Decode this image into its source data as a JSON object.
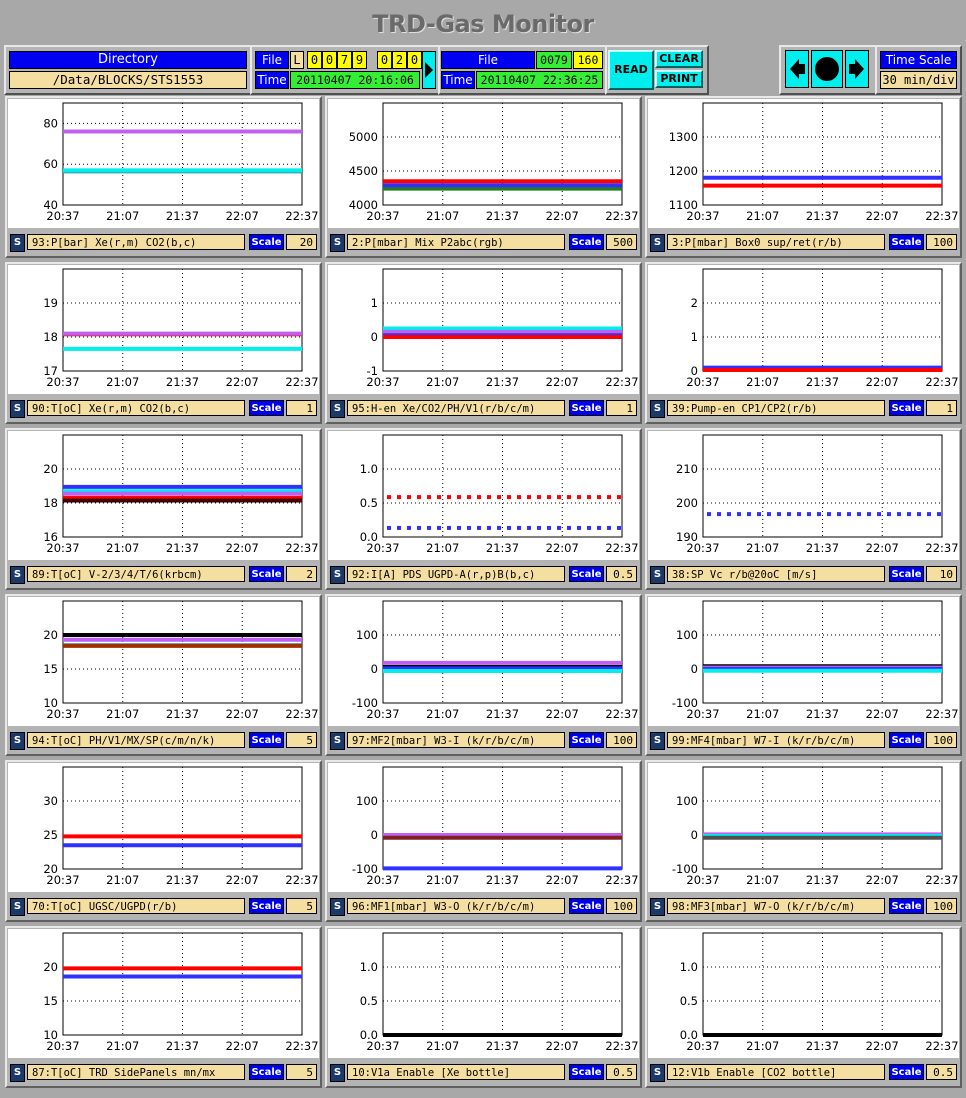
{
  "title": "TRD-Gas Monitor",
  "directory": {
    "label": "Directory",
    "path": "/Data/BLOCKS/STS1553"
  },
  "file_left": {
    "file_label": "File",
    "time_label": "Time",
    "l_label": "L",
    "digits": [
      "0",
      "0",
      "7",
      "9",
      "0",
      "2",
      "0"
    ],
    "time": "20110407  20:16:06"
  },
  "file_right": {
    "file_label": "File",
    "time_label": "Time",
    "num1": "0079",
    "num2": "160",
    "time": "20110407  22:36:25"
  },
  "buttons": {
    "read": "READ",
    "clear": "CLEAR",
    "print": "PRINT"
  },
  "timescale": {
    "label": "Time Scale",
    "value": "30 min/div"
  },
  "panel_common": {
    "s_icon": "S",
    "scale_label": "Scale",
    "xticks": [
      "20:37",
      "21:07",
      "21:37",
      "22:07",
      "22:37"
    ]
  },
  "panels": [
    {
      "label": "93:P[bar] Xe(r,m) CO2(b,c)",
      "scale": "20",
      "yticks": [
        "40",
        "60",
        "80"
      ],
      "ymin": 40,
      "ymax": 90,
      "series": [
        {
          "color": "#c060f0",
          "y": 76
        },
        {
          "color": "#20a0a0",
          "y": 56.5
        },
        {
          "color": "#00eeee",
          "y": 57
        }
      ]
    },
    {
      "label": "2:P[mbar] Mix P2abc(rgb)",
      "scale": "500",
      "yticks": [
        "4000",
        "4500",
        "5000"
      ],
      "ymin": 4000,
      "ymax": 5500,
      "series": [
        {
          "color": "#208020",
          "y": 4240
        },
        {
          "color": "#3030ff",
          "y": 4290
        },
        {
          "color": "#ff0000",
          "y": 4350
        }
      ]
    },
    {
      "label": "3:P[mbar] Box0 sup/ret(r/b)",
      "scale": "100",
      "yticks": [
        "1100",
        "1200",
        "1300"
      ],
      "ymin": 1100,
      "ymax": 1400,
      "series": [
        {
          "color": "#3030ff",
          "y": 1180
        },
        {
          "color": "#ff0000",
          "y": 1157
        }
      ]
    },
    {
      "label": "90:T[oC] Xe(r,m) CO2(b,c)",
      "scale": "1",
      "yticks": [
        "17",
        "18",
        "19"
      ],
      "ymin": 17,
      "ymax": 20,
      "series": [
        {
          "color": "#ff0000",
          "y": 18.08
        },
        {
          "color": "#c060f0",
          "y": 18.1
        },
        {
          "color": "#00eeee",
          "y": 17.65
        }
      ]
    },
    {
      "label": "95:H-en Xe/CO2/PH/V1(r/b/c/m)",
      "scale": "1",
      "yticks": [
        "-1",
        "0",
        "1"
      ],
      "ymin": -1,
      "ymax": 2,
      "series": [
        {
          "color": "#00eeee",
          "y": 0.25
        },
        {
          "color": "#c060f0",
          "y": 0.15
        },
        {
          "color": "#3030ff",
          "y": 0.05
        },
        {
          "color": "#ff0000",
          "y": 0.0
        }
      ]
    },
    {
      "label": "39:Pump-en CP1/CP2(r/b)",
      "scale": "1",
      "yticks": [
        "0",
        "1",
        "2"
      ],
      "ymin": 0,
      "ymax": 3,
      "series": [
        {
          "color": "#3030ff",
          "y": 0.1
        },
        {
          "color": "#ff0000",
          "y": 0.03
        }
      ]
    },
    {
      "label": "89:T[oC]  V-2/3/4/T/6(krbcm)",
      "scale": "2",
      "yticks": [
        "16",
        "18",
        "20"
      ],
      "ymin": 16,
      "ymax": 22,
      "series": [
        {
          "color": "#3030ff",
          "y": 18.95
        },
        {
          "color": "#00eeee",
          "y": 18.7
        },
        {
          "color": "#c060f0",
          "y": 18.55
        },
        {
          "color": "#ff0000",
          "y": 18.3
        },
        {
          "color": "#400000",
          "y": 18.15
        }
      ]
    },
    {
      "label": "92:I[A] PDS UGPD-A(r,p)B(b,c)",
      "scale": "0.5",
      "yticks": [
        "0.0",
        "0.5",
        "1.0"
      ],
      "ymin": 0,
      "ymax": 1.5,
      "series": [
        {
          "color": "#ff0000",
          "y": 0.6,
          "dots": true
        },
        {
          "color": "#3030ff",
          "y": 0.12,
          "dots": true
        }
      ]
    },
    {
      "label": "38:SP Vc r/b@20oC [m/s]",
      "scale": "10",
      "yticks": [
        "190",
        "200",
        "210"
      ],
      "ymin": 190,
      "ymax": 220,
      "series": [
        {
          "color": "#3030ff",
          "y": 197,
          "dots": true
        }
      ]
    },
    {
      "label": "94:T[oC] PH/V1/MX/SP(c/m/n/k)",
      "scale": "5",
      "yticks": [
        "10",
        "15",
        "20"
      ],
      "ymin": 10,
      "ymax": 25,
      "series": [
        {
          "color": "#000000",
          "y": 20
        },
        {
          "color": "#c060f0",
          "y": 19.3
        },
        {
          "color": "#20a0a0",
          "y": 18.5
        },
        {
          "color": "#a03000",
          "y": 18.4
        }
      ]
    },
    {
      "label": "97:MF2[mbar] W3-I  (k/r/b/c/m)",
      "scale": "100",
      "yticks": [
        "-100",
        "0",
        "100"
      ],
      "ymin": -100,
      "ymax": 200,
      "series": [
        {
          "color": "#c060f0",
          "y": 18
        },
        {
          "color": "#000000",
          "y": 6
        },
        {
          "color": "#3030ff",
          "y": 2
        },
        {
          "color": "#00eeee",
          "y": -6
        }
      ]
    },
    {
      "label": "99:MF4[mbar] W7-I  (k/r/b/c/m)",
      "scale": "100",
      "yticks": [
        "-100",
        "0",
        "100"
      ],
      "ymin": -100,
      "ymax": 200,
      "series": [
        {
          "color": "#000000",
          "y": 8
        },
        {
          "color": "#c060f0",
          "y": 4
        },
        {
          "color": "#3030ff",
          "y": 0
        },
        {
          "color": "#00eeee",
          "y": -5
        }
      ]
    },
    {
      "label": "70:T[oC] UGSC/UGPD(r/b)",
      "scale": "5",
      "yticks": [
        "20",
        "25",
        "30"
      ],
      "ymin": 20,
      "ymax": 35,
      "series": [
        {
          "color": "#ff0000",
          "y": 24.8
        },
        {
          "color": "#3030ff",
          "y": 23.5
        }
      ]
    },
    {
      "label": "96:MF1[mbar] W3-O  (k/r/b/c/m)",
      "scale": "100",
      "yticks": [
        "-100",
        "0",
        "100"
      ],
      "ymin": -100,
      "ymax": 200,
      "series": [
        {
          "color": "#c060f0",
          "y": 0
        },
        {
          "color": "#802020",
          "y": -8
        },
        {
          "color": "#3030ff",
          "y": -98
        }
      ]
    },
    {
      "label": "98:MF3[mbar] W7-O  (k/r/b/c/m)",
      "scale": "100",
      "yticks": [
        "-100",
        "0",
        "100"
      ],
      "ymin": -100,
      "ymax": 200,
      "series": [
        {
          "color": "#c060f0",
          "y": 2
        },
        {
          "color": "#00eeee",
          "y": -3
        },
        {
          "color": "#505050",
          "y": -8
        }
      ]
    },
    {
      "label": "87:T[oC] TRD SidePanels mn/mx",
      "scale": "5",
      "yticks": [
        "10",
        "15",
        "20"
      ],
      "ymin": 10,
      "ymax": 25,
      "series": [
        {
          "color": "#ff0000",
          "y": 19.8
        },
        {
          "color": "#3030ff",
          "y": 18.6
        }
      ]
    },
    {
      "label": "10:V1a  Enable [Xe bottle]",
      "scale": "0.5",
      "yticks": [
        "0.0",
        "0.5",
        "1.0"
      ],
      "ymin": 0,
      "ymax": 1.5,
      "series": [
        {
          "color": "#000000",
          "y": 0.0
        }
      ]
    },
    {
      "label": "12:V1b  Enable [CO2 bottle]",
      "scale": "0.5",
      "yticks": [
        "0.0",
        "0.5",
        "1.0"
      ],
      "ymin": 0,
      "ymax": 1.5,
      "series": [
        {
          "color": "#000000",
          "y": 0.0
        }
      ]
    }
  ]
}
